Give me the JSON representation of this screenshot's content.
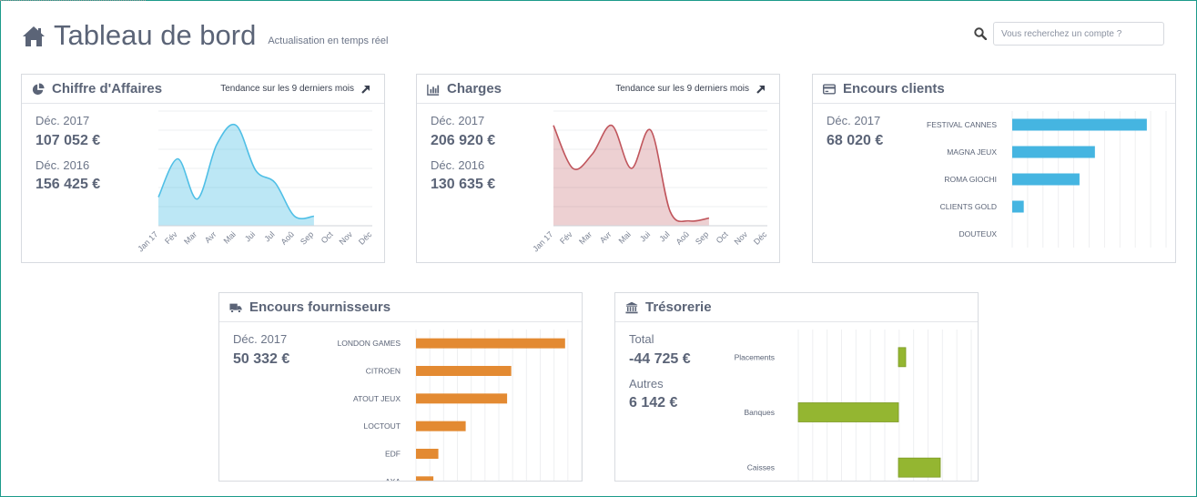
{
  "header": {
    "title": "Tableau de bord",
    "subtitle": "Actualisation en temps réel"
  },
  "search": {
    "placeholder": "Vous recherchez un compte ?"
  },
  "ca": {
    "title": "Chiffre d'Affaires",
    "trend": "Tendance sur les 9 derniers mois",
    "label1": "Déc. 2017",
    "value1": "107 052 €",
    "label2": "Déc. 2016",
    "value2": "156 425 €"
  },
  "charges": {
    "title": "Charges",
    "trend": "Tendance sur les 9 derniers mois",
    "label1": "Déc. 2017",
    "value1": "206 920 €",
    "label2": "Déc. 2016",
    "value2": "130 635 €"
  },
  "clients": {
    "title": "Encours clients",
    "label1": "Déc. 2017",
    "value1": "68 020 €"
  },
  "fournisseurs": {
    "title": "Encours fournisseurs",
    "label1": "Déc. 2017",
    "value1": "50 332 €"
  },
  "tresorerie": {
    "title": "Trésorerie",
    "label1": "Total",
    "value1": "-44 725 €",
    "label2": "Autres",
    "value2": "6 142 €"
  },
  "colors": {
    "ca": "#4fbfe6",
    "charges": "#c0555c",
    "clients": "#45b5e1",
    "fournisseurs": "#e38a32",
    "tresorerie": "#94b631",
    "text": "#5b6477"
  },
  "chart_data": [
    {
      "id": "ca",
      "type": "area",
      "categories": [
        "Jan 17",
        "Fév",
        "Mar",
        "Avr",
        "Mai",
        "Jui",
        "Jul",
        "Aoû",
        "Sep",
        "Oct",
        "Nov",
        "Déc"
      ],
      "values": [
        30,
        70,
        28,
        85,
        105,
        58,
        45,
        10,
        10,
        null,
        null,
        null
      ],
      "ylim": [
        0,
        120
      ],
      "grid": true
    },
    {
      "id": "charges",
      "type": "area",
      "categories": [
        "Jan 17",
        "Fév",
        "Mar",
        "Avr",
        "Mai",
        "Jui",
        "Jul",
        "Aoû",
        "Sep",
        "Oct",
        "Nov",
        "Déc"
      ],
      "values": [
        105,
        60,
        75,
        105,
        60,
        100,
        15,
        5,
        8,
        null,
        null,
        null
      ],
      "ylim": [
        0,
        120
      ],
      "grid": true
    },
    {
      "id": "clients",
      "type": "bar",
      "categories": [
        "FESTIVAL CANNES",
        "MAGNA JEUX",
        "ROMA GIOCHI",
        "CLIENTS GOLD",
        "DOUTEUX"
      ],
      "values": [
        35000,
        21500,
        17500,
        3000,
        0
      ],
      "xlim": [
        0,
        40000
      ],
      "grid": true
    },
    {
      "id": "fournisseurs",
      "type": "bar",
      "categories": [
        "LONDON GAMES",
        "CITROEN",
        "ATOUT JEUX",
        "LOCTOUT",
        "EDF",
        "AXA"
      ],
      "values": [
        18000,
        11500,
        11000,
        6000,
        2700,
        2100
      ],
      "xlim": [
        0,
        20000
      ],
      "grid": true
    },
    {
      "id": "tresorerie",
      "type": "bar",
      "categories": [
        "Placements",
        "Banques",
        "Caisses"
      ],
      "values": [
        2000,
        -27500,
        11500
      ],
      "xlim": [
        -27500,
        20000
      ],
      "grid": true
    }
  ]
}
